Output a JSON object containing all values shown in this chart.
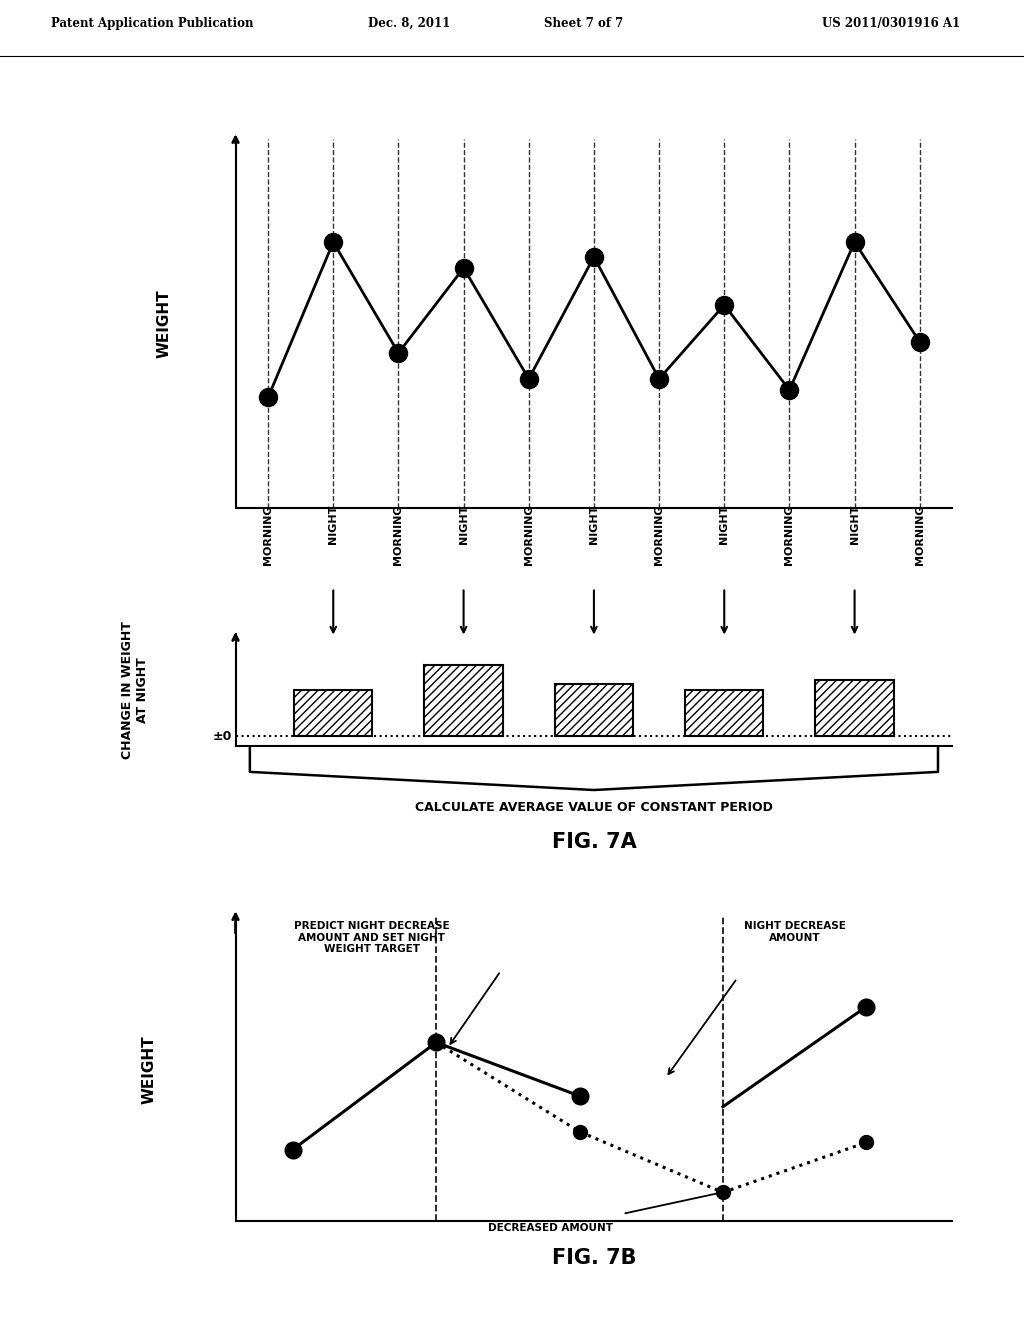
{
  "fig_width": 10.24,
  "fig_height": 13.2,
  "bg_color": "#ffffff",
  "header_text": "Patent Application Publication",
  "header_date": "Dec. 8, 2011",
  "header_sheet": "Sheet 7 of 7",
  "header_patent": "US 2011/0301916 A1",
  "fig7a_title": "FIG. 7A",
  "fig7b_title": "FIG. 7B",
  "top_chart_xlabel_labels": [
    "MORNING",
    "NIGHT",
    "MORNING",
    "NIGHT",
    "MORNING",
    "NIGHT",
    "MORNING",
    "NIGHT",
    "MORNING",
    "NIGHT",
    "MORNING"
  ],
  "top_chart_ylabel": "WEIGHT",
  "top_chart_y_values": [
    3.0,
    7.2,
    4.2,
    6.5,
    3.5,
    6.8,
    3.5,
    5.5,
    3.2,
    7.2,
    4.5
  ],
  "bottom_chart_ylabel": "CHANGE IN WEIGHT\nAT NIGHT",
  "bottom_chart_bars_x": [
    1,
    3,
    5,
    7,
    9
  ],
  "bottom_chart_bars_heights": [
    2.5,
    3.8,
    2.8,
    2.5,
    3.0
  ],
  "bottom_chart_bar_width": 1.2,
  "calc_avg_label": "CALCULATE AVERAGE VALUE OF CONSTANT PERIOD",
  "fig7b_annotations": {
    "predict_label": "PREDICT NIGHT DECREASE\nAMOUNT AND SET NIGHT\nWEIGHT TARGET",
    "night_decrease_label": "NIGHT DECREASE\nAMOUNT",
    "decreased_amount_label": "DECREASED AMOUNT"
  }
}
